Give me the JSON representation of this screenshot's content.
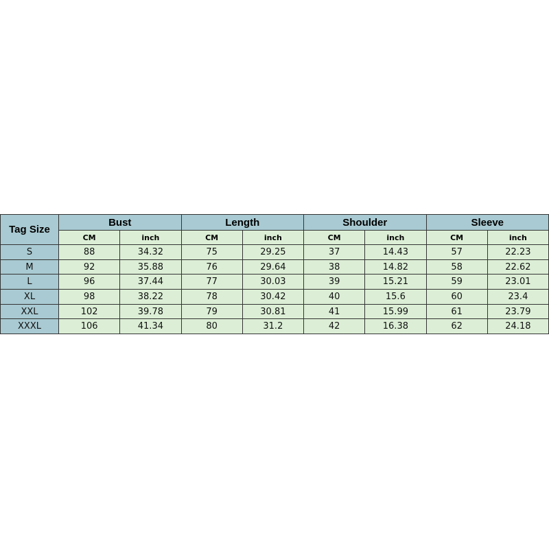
{
  "table": {
    "header": {
      "tag": "Tag Size",
      "groups": [
        {
          "name": "Bust",
          "units": [
            "CM",
            "inch"
          ]
        },
        {
          "name": "Length",
          "units": [
            "CM",
            "inch"
          ]
        },
        {
          "name": "Shoulder",
          "units": [
            "CM",
            "inch"
          ]
        },
        {
          "name": "Sleeve",
          "units": [
            "CM",
            "inch"
          ]
        }
      ]
    },
    "rows": [
      [
        "S",
        88,
        34.32,
        75,
        29.25,
        37,
        14.43,
        57,
        22.23
      ],
      [
        "M",
        92,
        35.88,
        76,
        29.64,
        38,
        14.82,
        58,
        22.62
      ],
      [
        "L",
        96,
        37.44,
        77,
        30.03,
        39,
        15.21,
        59,
        23.01
      ],
      [
        "XL",
        98,
        38.22,
        78,
        30.42,
        40,
        15.6,
        60,
        23.4
      ],
      [
        "XXL",
        102,
        39.78,
        79,
        30.81,
        41,
        15.99,
        61,
        23.79
      ],
      [
        "XXXL",
        106,
        41.34,
        80,
        31.2,
        42,
        16.38,
        62,
        24.18
      ]
    ]
  }
}
